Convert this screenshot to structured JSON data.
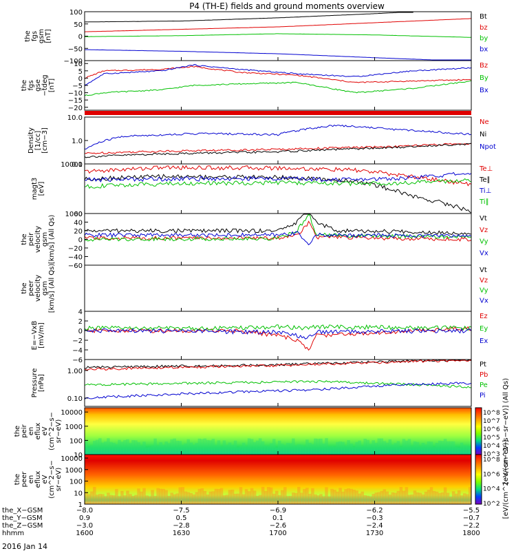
{
  "title": "P4 (TH-E) fields and ground moments overview",
  "date_label": "2016 Jan 14",
  "colors": {
    "black": "#000000",
    "red": "#e00000",
    "green": "#00c000",
    "blue": "#0000d0"
  },
  "chart_data": [
    {
      "type": "line",
      "panel": "fgs_gsm_full",
      "ylabel": [
        "the",
        "fgs",
        "gsm",
        "[nT]"
      ],
      "ylim": [
        -100,
        100
      ],
      "yticks": [
        "100",
        "50",
        "0",
        "−50",
        "−100"
      ],
      "ytick_values": [
        100,
        50,
        0,
        -50,
        -100
      ],
      "legend": [
        "Bt",
        "bz",
        "by",
        "bx"
      ],
      "series": [
        {
          "name": "Bt",
          "color": "black",
          "x": [
            0,
            0.25,
            0.5,
            0.75,
            0.85
          ],
          "values": [
            58,
            62,
            75,
            92,
            100
          ]
        },
        {
          "name": "bz",
          "color": "red",
          "x": [
            0,
            0.25,
            0.5,
            0.75,
            1
          ],
          "values": [
            18,
            28,
            38,
            55,
            72
          ]
        },
        {
          "name": "by",
          "color": "green",
          "x": [
            0,
            0.25,
            0.5,
            0.75,
            1
          ],
          "values": [
            -2,
            2,
            10,
            5,
            -5
          ]
        },
        {
          "name": "bx",
          "color": "blue",
          "x": [
            0,
            0.25,
            0.5,
            0.75,
            1
          ],
          "values": [
            -55,
            -62,
            -72,
            -88,
            -103
          ]
        }
      ]
    },
    {
      "type": "line",
      "panel": "fgs_gse_detrended",
      "ylabel": [
        "the",
        "fgs",
        "gse",
        "−tdeg",
        "[nT]"
      ],
      "ylim": [
        -22,
        12
      ],
      "yticks": [
        "10",
        "5",
        "0",
        "−5",
        "−10",
        "−15",
        "−20"
      ],
      "ytick_values": [
        10,
        5,
        0,
        -5,
        -10,
        -15,
        -20
      ],
      "legend": [
        "Bz",
        "By",
        "Bx"
      ],
      "series": [
        {
          "name": "Bz",
          "color": "red",
          "x": [
            0,
            0.05,
            0.2,
            0.28,
            0.4,
            0.55,
            0.7,
            0.85,
            1
          ],
          "values": [
            0,
            5,
            6,
            8,
            4,
            2,
            -3,
            -2,
            -1
          ]
        },
        {
          "name": "By",
          "color": "green",
          "x": [
            0,
            0.05,
            0.2,
            0.28,
            0.4,
            0.55,
            0.7,
            0.85,
            1
          ],
          "values": [
            -12,
            -10,
            -8,
            -5,
            -4,
            -3,
            -10,
            -7,
            -2
          ]
        },
        {
          "name": "Bx",
          "color": "blue",
          "x": [
            0,
            0.05,
            0.2,
            0.28,
            0.4,
            0.55,
            0.7,
            0.85,
            1
          ],
          "values": [
            -5,
            3,
            5,
            9,
            6,
            3,
            1,
            5,
            7
          ]
        }
      ]
    },
    {
      "type": "line",
      "panel": "density",
      "scale": "log",
      "ylabel": [
        "Density",
        "[1/cc]",
        "[cm−3]"
      ],
      "ylim": [
        0.1,
        10
      ],
      "yticks": [
        "10.0",
        "1.0",
        "0.1"
      ],
      "ytick_values": [
        10,
        1,
        0.1
      ],
      "legend": [
        "Ne",
        "Ni",
        "Npot"
      ],
      "series": [
        {
          "name": "Ne",
          "color": "red",
          "x": [
            0,
            0.2,
            0.5,
            0.8,
            1
          ],
          "values": [
            0.28,
            0.35,
            0.42,
            0.55,
            0.75
          ]
        },
        {
          "name": "Ni",
          "color": "black",
          "x": [
            0,
            0.2,
            0.5,
            0.8,
            1
          ],
          "values": [
            0.2,
            0.27,
            0.33,
            0.5,
            0.72
          ]
        },
        {
          "name": "Npot",
          "color": "blue",
          "x": [
            0,
            0.1,
            0.3,
            0.5,
            0.65,
            0.8,
            1
          ],
          "values": [
            0.4,
            1.5,
            2.0,
            1.8,
            4.5,
            3.0,
            1.8
          ]
        }
      ]
    },
    {
      "type": "line",
      "panel": "temperature",
      "scale": "log",
      "ylabel": [
        "magt3",
        "[eV]"
      ],
      "ylim": [
        1000,
        10000
      ],
      "yticks": [
        "10000",
        "1000"
      ],
      "ytick_values": [
        10000,
        1000
      ],
      "legend": [
        "Te⊥",
        "Te∥",
        "Ti⊥",
        "Ti∥"
      ],
      "series": [
        {
          "name": "Te⊥",
          "color": "red",
          "x": [
            0,
            0.2,
            0.5,
            0.7,
            0.85,
            1
          ],
          "values": [
            7000,
            8500,
            8300,
            7500,
            5500,
            3800
          ]
        },
        {
          "name": "Te∥",
          "color": "black",
          "x": [
            0,
            0.2,
            0.5,
            0.7,
            0.85,
            1
          ],
          "values": [
            5000,
            5600,
            5400,
            4500,
            2200,
            1100
          ]
        },
        {
          "name": "Ti⊥",
          "color": "blue",
          "x": [
            0,
            0.2,
            0.5,
            0.7,
            0.85,
            1
          ],
          "values": [
            4800,
            5000,
            5100,
            4800,
            5300,
            6500
          ]
        },
        {
          "name": "Ti∥",
          "color": "green",
          "x": [
            0,
            0.2,
            0.5,
            0.7,
            0.85,
            1
          ],
          "values": [
            3500,
            4000,
            4200,
            4000,
            4200,
            4700
          ]
        }
      ]
    },
    {
      "type": "line",
      "panel": "peir_velocity",
      "ylabel": [
        "the",
        "peir",
        "velocity",
        "gsm",
        "[km/s] (All Qs)"
      ],
      "ylim": [
        -60,
        60
      ],
      "yticks": [
        "60",
        "40",
        "20",
        "0",
        "−20",
        "−40",
        "−60"
      ],
      "ytick_values": [
        60,
        40,
        20,
        0,
        -20,
        -40,
        -60
      ],
      "legend": [
        "Vt",
        "Vz",
        "Vy",
        "Vx"
      ],
      "series": [
        {
          "name": "Vt",
          "color": "black",
          "x": [
            0,
            0.5,
            0.55,
            0.58,
            0.6,
            0.65,
            1
          ],
          "values": [
            20,
            20,
            40,
            70,
            40,
            20,
            15
          ]
        },
        {
          "name": "Vz",
          "color": "red",
          "x": [
            0,
            0.5,
            0.55,
            0.58,
            0.6,
            1
          ],
          "values": [
            3,
            3,
            10,
            40,
            5,
            0
          ]
        },
        {
          "name": "Vy",
          "color": "green",
          "x": [
            0,
            0.5,
            0.55,
            0.58,
            0.6,
            1
          ],
          "values": [
            0,
            2,
            20,
            60,
            10,
            5
          ]
        },
        {
          "name": "Vx",
          "color": "blue",
          "x": [
            0,
            0.5,
            0.55,
            0.58,
            0.6,
            1
          ],
          "values": [
            10,
            10,
            15,
            -10,
            10,
            8
          ]
        }
      ]
    },
    {
      "type": "line",
      "panel": "peer_velocity",
      "ylabel": [
        "the",
        "peer",
        "velocity",
        "gsm",
        "[km/s] (All Qs)"
      ],
      "legend": [
        "Vt",
        "Vz",
        "Vy",
        "Vx"
      ],
      "series": []
    },
    {
      "type": "line",
      "panel": "efield",
      "ylabel": [
        "E=−VxB",
        "[mV/m]"
      ],
      "ylim": [
        -6,
        4
      ],
      "yticks": [
        "4",
        "2",
        "0",
        "−2",
        "−4",
        "−6"
      ],
      "ytick_values": [
        4,
        2,
        0,
        -2,
        -4,
        -6
      ],
      "legend": [
        "Ez",
        "Ey",
        "Ex"
      ],
      "series": [
        {
          "name": "Ez",
          "color": "red",
          "x": [
            0,
            0.4,
            0.5,
            0.55,
            0.58,
            0.6,
            1
          ],
          "values": [
            0,
            0,
            -1,
            -2,
            -4,
            -1,
            0.5
          ]
        },
        {
          "name": "Ey",
          "color": "green",
          "x": [
            0,
            0.4,
            0.5,
            0.58,
            0.6,
            1
          ],
          "values": [
            0.5,
            0.5,
            0.8,
            0.5,
            0.8,
            0.5
          ]
        },
        {
          "name": "Ex",
          "color": "blue",
          "x": [
            0,
            0.5,
            0.58,
            0.6,
            1
          ],
          "values": [
            0,
            -0.3,
            -1.5,
            -0.3,
            0
          ]
        }
      ]
    },
    {
      "type": "line",
      "panel": "pressure",
      "scale": "log",
      "ylabel": [
        "Pressure",
        "[nPa]"
      ],
      "ylim": [
        0.05,
        2.5
      ],
      "yticks": [
        "1.00",
        "0.10"
      ],
      "ytick_values": [
        1,
        0.1
      ],
      "legend": [
        "Pt",
        "Pb",
        "Pe",
        "Pi"
      ],
      "series": [
        {
          "name": "Pt",
          "color": "black",
          "x": [
            0,
            0.5,
            1
          ],
          "values": [
            1.3,
            1.6,
            2.5
          ]
        },
        {
          "name": "Pb",
          "color": "red",
          "x": [
            0,
            0.5,
            1
          ],
          "values": [
            1.1,
            1.5,
            2.4
          ]
        },
        {
          "name": "Pe",
          "color": "green",
          "x": [
            0,
            0.3,
            0.6,
            1
          ],
          "values": [
            0.3,
            0.35,
            0.4,
            0.25
          ]
        },
        {
          "name": "Pi",
          "color": "blue",
          "x": [
            0,
            0.3,
            0.6,
            0.8,
            1
          ],
          "values": [
            0.1,
            0.15,
            0.2,
            0.3,
            0.35
          ]
        }
      ]
    },
    {
      "type": "heatmap",
      "panel": "peir_spectrogram",
      "scale": "log",
      "ylabel": [
        "the",
        "peir",
        "en",
        "eflux",
        "eV",
        "(cm^2−s−",
        "sr−eV)"
      ],
      "ylim": [
        10,
        20000
      ],
      "yticks": [
        "10000",
        "1000",
        "100",
        "10"
      ],
      "ytick_values": [
        10000,
        1000,
        100,
        10
      ],
      "colorbar_ticks": [
        "10^8",
        "10^7",
        "10^6",
        "10^5",
        "10^4",
        "10^3"
      ],
      "colorbar_label": "[eV/(cm^2−s−sr−eV)] (All Qs)"
    },
    {
      "type": "heatmap",
      "panel": "peer_spectrogram",
      "scale": "log",
      "ylabel": [
        "the",
        "peer",
        "en",
        "eflux",
        "eV",
        "(cm^2−s−",
        "sr−eV)"
      ],
      "ylim": [
        1,
        20000
      ],
      "yticks": [
        "10000",
        "1000",
        "100",
        "10",
        "1"
      ],
      "ytick_values": [
        10000,
        1000,
        100,
        10,
        1
      ],
      "colorbar_ticks": [
        "10^8",
        "10^6",
        "10^4",
        "10^2"
      ],
      "colorbar_label": "[eV/(cm^2−s−sr−eV)]"
    }
  ],
  "x_axis": {
    "row_labels": [
      "the_X−GSM",
      "the_Y−GSM",
      "the_Z−GSM",
      "hhmm"
    ],
    "ticks": [
      {
        "pos": 0.0,
        "x_gsm": "−8.0",
        "y_gsm": "0.9",
        "z_gsm": "−3.0",
        "hhmm": "1600"
      },
      {
        "pos": 0.25,
        "x_gsm": "−7.5",
        "y_gsm": "0.5",
        "z_gsm": "−2.8",
        "hhmm": "1630"
      },
      {
        "pos": 0.5,
        "x_gsm": "−6.9",
        "y_gsm": "0.1",
        "z_gsm": "−2.6",
        "hhmm": "1700"
      },
      {
        "pos": 0.75,
        "x_gsm": "−6.2",
        "y_gsm": "−0.3",
        "z_gsm": "−2.4",
        "hhmm": "1730"
      },
      {
        "pos": 1.0,
        "x_gsm": "−5.5",
        "y_gsm": "−0.7",
        "z_gsm": "−2.2",
        "hhmm": "1800"
      }
    ]
  }
}
